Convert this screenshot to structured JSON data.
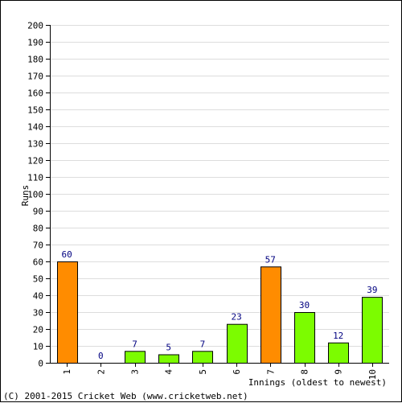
{
  "chart_data": {
    "type": "bar",
    "categories": [
      "1",
      "2",
      "3",
      "4",
      "5",
      "6",
      "7",
      "8",
      "9",
      "10"
    ],
    "values": [
      60,
      0,
      7,
      5,
      7,
      23,
      57,
      30,
      12,
      39
    ],
    "bar_colors": [
      "#ff8c00",
      "#7cfc00",
      "#7cfc00",
      "#7cfc00",
      "#7cfc00",
      "#7cfc00",
      "#ff8c00",
      "#7cfc00",
      "#7cfc00",
      "#7cfc00"
    ],
    "ylabel": "Runs",
    "xlabel": "Innings (oldest to newest)",
    "ylim": [
      0,
      200
    ],
    "ytick_step": 10,
    "grid": true,
    "grid_color": "#dddddd",
    "data_label_color": "#000080"
  },
  "footer": {
    "copyright": "(C) 2001-2015 Cricket Web (www.cricketweb.net)"
  }
}
